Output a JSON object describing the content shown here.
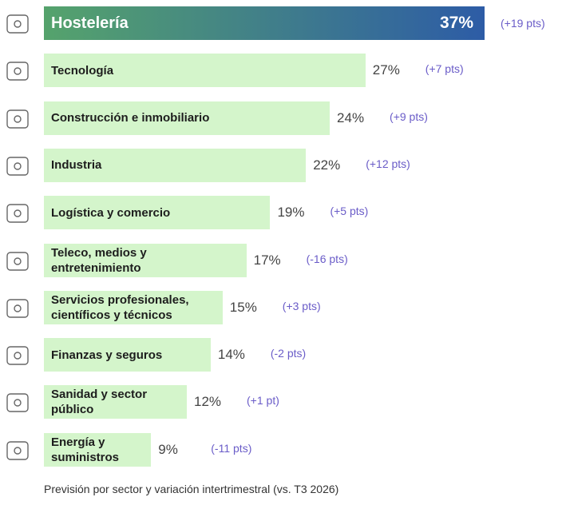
{
  "chart_data": {
    "type": "bar",
    "orientation": "horizontal",
    "categories": [
      "Hostelería",
      "Tecnología",
      "Construcción e inmobiliario",
      "Industria",
      "Logística y comercio",
      "Teleco, medios y\nentretenimiento",
      "Servicios profesionales,\ncientíficos y técnicos",
      "Finanzas y seguros",
      "Sanidad y sector\npúblico",
      "Energía y\nsuministros"
    ],
    "values": [
      37,
      27,
      24,
      22,
      19,
      17,
      15,
      14,
      12,
      9
    ],
    "value_labels": [
      "37%",
      "27%",
      "24%",
      "22%",
      "19%",
      "17%",
      "15%",
      "14%",
      "12%",
      "9%"
    ],
    "annotations": [
      "(+19 pts)",
      "(+7 pts)",
      "(+9 pts)",
      "(+12 pts)",
      "(+5 pts)",
      "(-16 pts)",
      "(+3 pts)",
      "(-2 pts)",
      "(+1 pt)",
      "(-11 pts)"
    ],
    "color": "#d4f5cb",
    "highlight_colors": [
      "#55a36c",
      "#2d5ca6"
    ],
    "annotation_color": "#6a5cc8",
    "caption": "Previsión por sector y variación intertrimestral (vs. T3 2026)"
  }
}
